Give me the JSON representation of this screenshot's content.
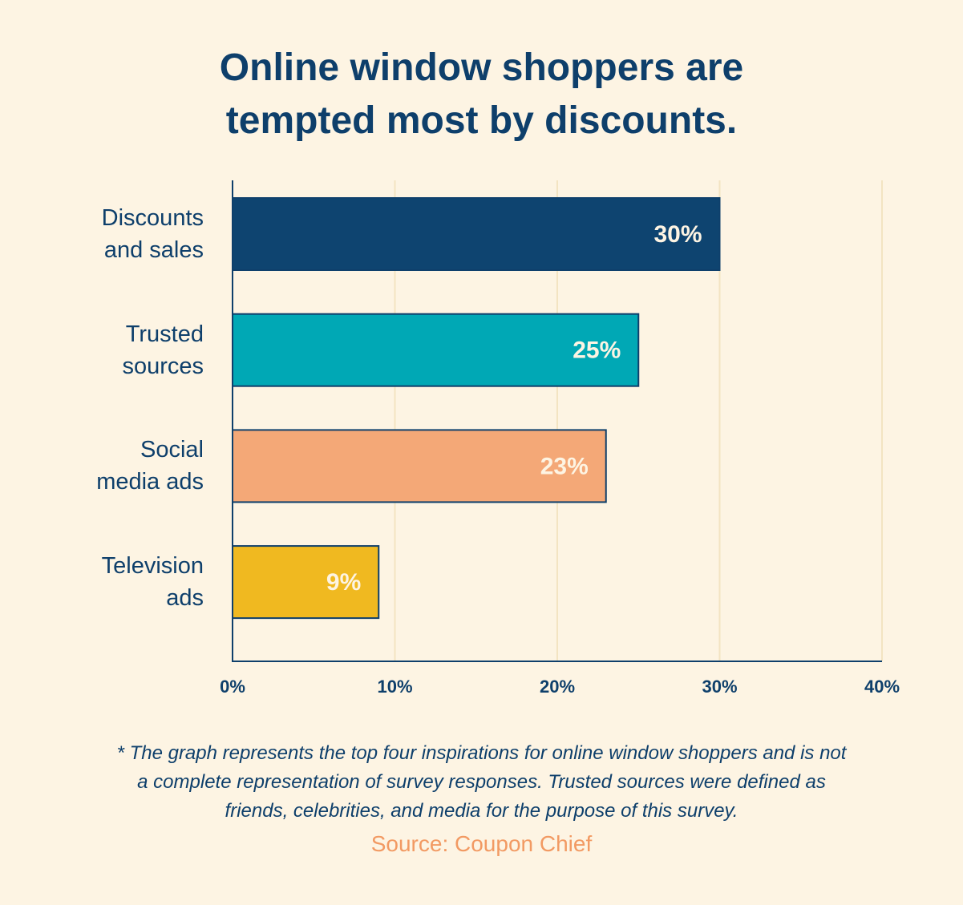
{
  "chart_data": {
    "type": "bar",
    "orientation": "horizontal",
    "title": "Online window shoppers are\ntempted most by discounts.",
    "categories": [
      "Discounts\nand sales",
      "Trusted\nsources",
      "Social\nmedia ads",
      "Television\nads"
    ],
    "values": [
      30,
      25,
      23,
      9
    ],
    "value_labels": [
      "30%",
      "25%",
      "23%",
      "9%"
    ],
    "colors": [
      "#0e4470",
      "#00a8b5",
      "#f4a877",
      "#f0b920"
    ],
    "xlim": [
      0,
      40
    ],
    "xticks": [
      {
        "value": 0,
        "label": "0%"
      },
      {
        "value": 10,
        "label": "10%"
      },
      {
        "value": 20,
        "label": "20%"
      },
      {
        "value": 30,
        "label": "30%"
      },
      {
        "value": 40,
        "label": "40%"
      }
    ],
    "grid": true,
    "footnote": "* The graph represents the top four inspirations for online window shoppers and is not\na complete representation of survey responses. Trusted sources were defined as\nfriends, celebrities, and media for the purpose of this survey.",
    "source": "Source: Coupon Chief"
  }
}
